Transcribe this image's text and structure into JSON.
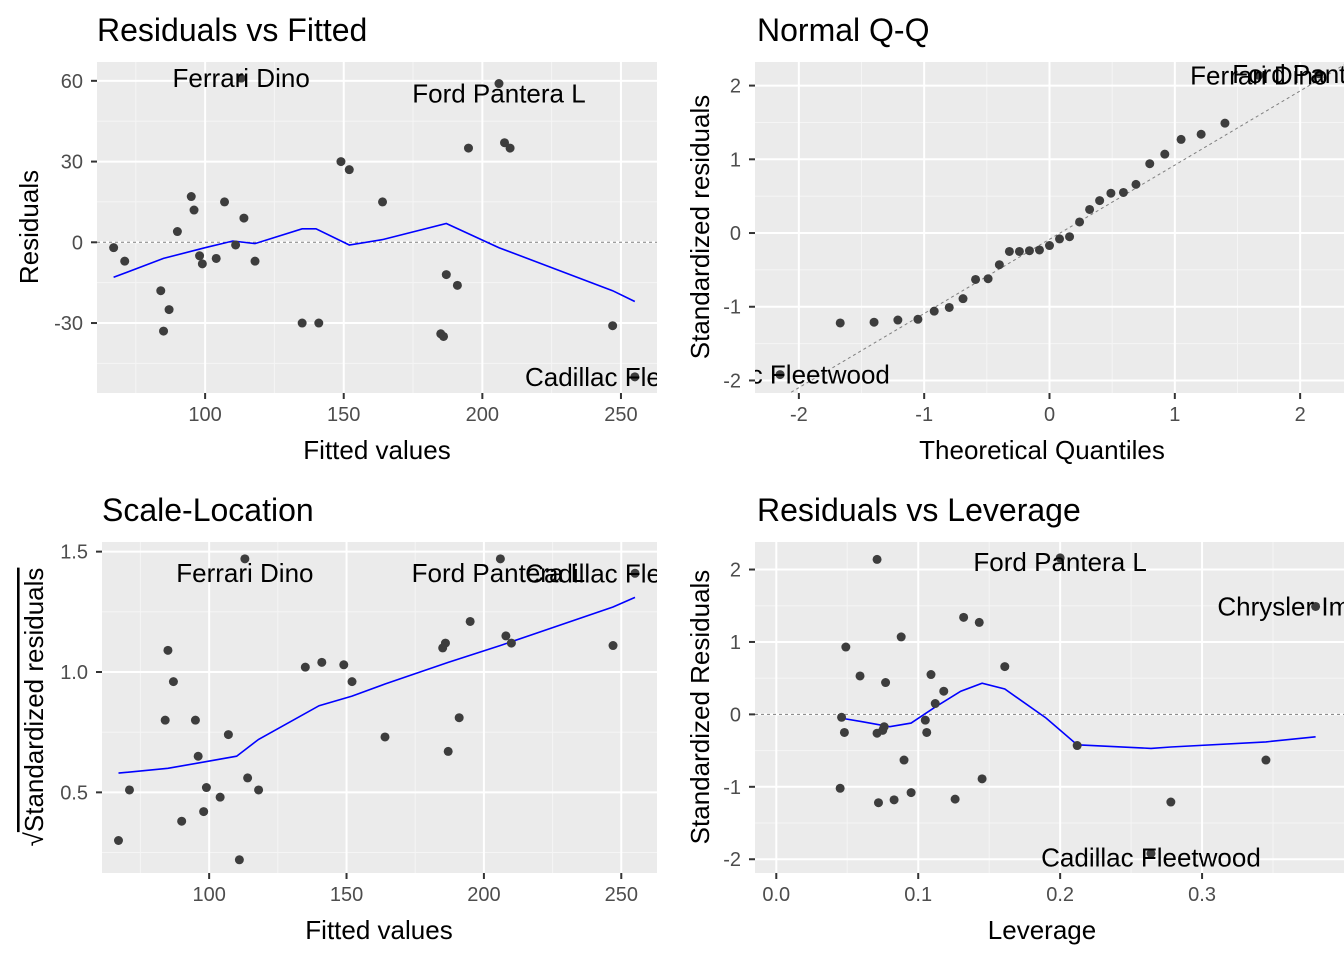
{
  "chart_data": [
    {
      "type": "scatter",
      "title": "Residuals vs Fitted",
      "xlabel": "Fitted values",
      "ylabel": "Residuals",
      "xlim": [
        61,
        263
      ],
      "ylim": [
        -56,
        67
      ],
      "xticks": [
        100,
        150,
        200,
        250
      ],
      "yticks": [
        -30,
        0,
        30,
        60
      ],
      "tick_labels_x": [
        "100",
        "150",
        "200",
        "250"
      ],
      "tick_labels_y": [
        "-30",
        "0",
        "30",
        "60"
      ],
      "hline": 0,
      "points": [
        {
          "x": 67,
          "y": -2
        },
        {
          "x": 71,
          "y": -7
        },
        {
          "x": 84,
          "y": -18
        },
        {
          "x": 85,
          "y": -33
        },
        {
          "x": 87,
          "y": -25
        },
        {
          "x": 90,
          "y": 4
        },
        {
          "x": 95,
          "y": 17
        },
        {
          "x": 96,
          "y": 12
        },
        {
          "x": 98,
          "y": -5
        },
        {
          "x": 99,
          "y": -8
        },
        {
          "x": 104,
          "y": -6
        },
        {
          "x": 107,
          "y": 15
        },
        {
          "x": 111,
          "y": -1
        },
        {
          "x": 113,
          "y": 61
        },
        {
          "x": 114,
          "y": 9
        },
        {
          "x": 118,
          "y": -7
        },
        {
          "x": 135,
          "y": -30
        },
        {
          "x": 141,
          "y": -30
        },
        {
          "x": 149,
          "y": 30
        },
        {
          "x": 152,
          "y": 27
        },
        {
          "x": 164,
          "y": 15
        },
        {
          "x": 185,
          "y": -34
        },
        {
          "x": 186,
          "y": -35
        },
        {
          "x": 187,
          "y": -12
        },
        {
          "x": 191,
          "y": -16
        },
        {
          "x": 195,
          "y": 35
        },
        {
          "x": 206,
          "y": 59
        },
        {
          "x": 208,
          "y": 37
        },
        {
          "x": 210,
          "y": 35
        },
        {
          "x": 247,
          "y": -31
        },
        {
          "x": 255,
          "y": -50
        }
      ],
      "smooth": [
        {
          "x": 67,
          "y": -13
        },
        {
          "x": 85,
          "y": -6
        },
        {
          "x": 100,
          "y": -2
        },
        {
          "x": 110,
          "y": 0.5
        },
        {
          "x": 118,
          "y": -0.5
        },
        {
          "x": 135,
          "y": 5
        },
        {
          "x": 140,
          "y": 5
        },
        {
          "x": 152,
          "y": -1
        },
        {
          "x": 164,
          "y": 1
        },
        {
          "x": 187,
          "y": 7
        },
        {
          "x": 206,
          "y": -2
        },
        {
          "x": 247,
          "y": -18
        },
        {
          "x": 255,
          "y": -22
        }
      ],
      "labels": [
        {
          "text": "Ferrari Dino",
          "x": 113,
          "y": 61
        },
        {
          "text": "Ford Pantera L",
          "x": 206,
          "y": 59
        },
        {
          "text": "Cadillac Fleetwood",
          "x": 255,
          "y": -50
        }
      ]
    },
    {
      "type": "scatter",
      "title": "Normal Q-Q",
      "xlabel": "Theoretical Quantiles",
      "ylabel": "Standardized residuals",
      "xlim": [
        -2.35,
        2.35
      ],
      "ylim": [
        -2.17,
        2.32
      ],
      "xticks": [
        -2,
        -1,
        0,
        1,
        2
      ],
      "yticks": [
        -2,
        -1,
        0,
        1,
        2
      ],
      "tick_labels_x": [
        "-2",
        "-1",
        "0",
        "1",
        "2"
      ],
      "tick_labels_y": [
        "-2",
        "-1",
        "0",
        "1",
        "2"
      ],
      "ref_line": {
        "from": [
          -2.35,
          -2.45
        ],
        "to": [
          2.35,
          2.28
        ]
      },
      "points": [
        {
          "x": -2.15,
          "y": -1.92
        },
        {
          "x": -1.67,
          "y": -1.22
        },
        {
          "x": -1.4,
          "y": -1.21
        },
        {
          "x": -1.21,
          "y": -1.18
        },
        {
          "x": -1.05,
          "y": -1.17
        },
        {
          "x": -0.92,
          "y": -1.06
        },
        {
          "x": -0.8,
          "y": -1.01
        },
        {
          "x": -0.69,
          "y": -0.89
        },
        {
          "x": -0.59,
          "y": -0.63
        },
        {
          "x": -0.49,
          "y": -0.62
        },
        {
          "x": -0.4,
          "y": -0.43
        },
        {
          "x": -0.32,
          "y": -0.25
        },
        {
          "x": -0.24,
          "y": -0.25
        },
        {
          "x": -0.16,
          "y": -0.24
        },
        {
          "x": -0.08,
          "y": -0.23
        },
        {
          "x": 0.0,
          "y": -0.17
        },
        {
          "x": 0.08,
          "y": -0.08
        },
        {
          "x": 0.16,
          "y": -0.05
        },
        {
          "x": 0.24,
          "y": 0.15
        },
        {
          "x": 0.32,
          "y": 0.32
        },
        {
          "x": 0.4,
          "y": 0.44
        },
        {
          "x": 0.49,
          "y": 0.54
        },
        {
          "x": 0.59,
          "y": 0.55
        },
        {
          "x": 0.69,
          "y": 0.66
        },
        {
          "x": 0.8,
          "y": 0.94
        },
        {
          "x": 0.92,
          "y": 1.07
        },
        {
          "x": 1.05,
          "y": 1.27
        },
        {
          "x": 1.21,
          "y": 1.34
        },
        {
          "x": 1.4,
          "y": 1.49
        },
        {
          "x": 1.67,
          "y": 2.14
        },
        {
          "x": 2.15,
          "y": 2.16
        }
      ],
      "labels": [
        {
          "text": "Ferrari Dino",
          "x": 1.67,
          "y": 2.14
        },
        {
          "text": "Ford Pantera L",
          "x": 2.15,
          "y": 2.16
        },
        {
          "text": "Cadillac Fleetwood",
          "x": -2.15,
          "y": -1.92
        }
      ]
    },
    {
      "type": "scatter",
      "title": "Scale-Location",
      "xlabel": "Fitted values",
      "ylabel": "Standardized residuals",
      "ylabel_prefix": "√",
      "xlim": [
        61,
        263
      ],
      "ylim": [
        0.165,
        1.54
      ],
      "xticks": [
        100,
        150,
        200,
        250
      ],
      "yticks": [
        0.5,
        1.0,
        1.5
      ],
      "tick_labels_x": [
        "100",
        "150",
        "200",
        "250"
      ],
      "tick_labels_y": [
        "0.5",
        "1.0",
        "1.5"
      ],
      "points": [
        {
          "x": 67,
          "y": 0.3
        },
        {
          "x": 71,
          "y": 0.51
        },
        {
          "x": 84,
          "y": 0.8
        },
        {
          "x": 85,
          "y": 1.09
        },
        {
          "x": 87,
          "y": 0.96
        },
        {
          "x": 90,
          "y": 0.38
        },
        {
          "x": 95,
          "y": 0.8
        },
        {
          "x": 96,
          "y": 0.65
        },
        {
          "x": 98,
          "y": 0.42
        },
        {
          "x": 99,
          "y": 0.52
        },
        {
          "x": 104,
          "y": 0.48
        },
        {
          "x": 107,
          "y": 0.74
        },
        {
          "x": 111,
          "y": 0.22
        },
        {
          "x": 113,
          "y": 1.47
        },
        {
          "x": 114,
          "y": 0.56
        },
        {
          "x": 118,
          "y": 0.51
        },
        {
          "x": 135,
          "y": 1.02
        },
        {
          "x": 141,
          "y": 1.04
        },
        {
          "x": 149,
          "y": 1.03
        },
        {
          "x": 152,
          "y": 0.96
        },
        {
          "x": 164,
          "y": 0.73
        },
        {
          "x": 185,
          "y": 1.1
        },
        {
          "x": 186,
          "y": 1.12
        },
        {
          "x": 187,
          "y": 0.67
        },
        {
          "x": 191,
          "y": 0.81
        },
        {
          "x": 195,
          "y": 1.21
        },
        {
          "x": 206,
          "y": 1.47
        },
        {
          "x": 208,
          "y": 1.15
        },
        {
          "x": 210,
          "y": 1.12
        },
        {
          "x": 247,
          "y": 1.11
        },
        {
          "x": 255,
          "y": 1.41
        }
      ],
      "smooth": [
        {
          "x": 67,
          "y": 0.58
        },
        {
          "x": 85,
          "y": 0.6
        },
        {
          "x": 100,
          "y": 0.63
        },
        {
          "x": 110,
          "y": 0.65
        },
        {
          "x": 118,
          "y": 0.72
        },
        {
          "x": 140,
          "y": 0.86
        },
        {
          "x": 152,
          "y": 0.9
        },
        {
          "x": 164,
          "y": 0.95
        },
        {
          "x": 187,
          "y": 1.04
        },
        {
          "x": 206,
          "y": 1.11
        },
        {
          "x": 247,
          "y": 1.27
        },
        {
          "x": 255,
          "y": 1.31
        }
      ],
      "labels": [
        {
          "text": "Ferrari Dino",
          "x": 113,
          "y": 1.47
        },
        {
          "text": "Ford Pantera L",
          "x": 206,
          "y": 1.47
        },
        {
          "text": "Cadillac Fleetwood",
          "x": 255,
          "y": 1.41
        }
      ]
    },
    {
      "type": "scatter",
      "title": "Residuals vs Leverage",
      "xlabel": "Leverage",
      "ylabel": "Standardized Residuals",
      "xlim": [
        -0.015,
        0.4
      ],
      "ylim": [
        -2.19,
        2.38
      ],
      "xticks": [
        0.0,
        0.1,
        0.2,
        0.3
      ],
      "yticks": [
        -2,
        -1,
        0,
        1,
        2
      ],
      "tick_labels_x": [
        "0.0",
        "0.1",
        "0.2",
        "0.3"
      ],
      "tick_labels_y": [
        "-2",
        "-1",
        "0",
        "1",
        "2"
      ],
      "hline": 0,
      "points": [
        {
          "x": 0.045,
          "y": -1.02
        },
        {
          "x": 0.046,
          "y": -0.04
        },
        {
          "x": 0.048,
          "y": -0.25
        },
        {
          "x": 0.049,
          "y": 0.93
        },
        {
          "x": 0.059,
          "y": 0.53
        },
        {
          "x": 0.071,
          "y": 2.14
        },
        {
          "x": 0.071,
          "y": -0.26
        },
        {
          "x": 0.072,
          "y": -1.22
        },
        {
          "x": 0.075,
          "y": -0.22
        },
        {
          "x": 0.076,
          "y": -0.17
        },
        {
          "x": 0.077,
          "y": 0.44
        },
        {
          "x": 0.083,
          "y": -1.18
        },
        {
          "x": 0.088,
          "y": 1.07
        },
        {
          "x": 0.09,
          "y": -0.63
        },
        {
          "x": 0.095,
          "y": -1.08
        },
        {
          "x": 0.105,
          "y": -0.08
        },
        {
          "x": 0.106,
          "y": -0.25
        },
        {
          "x": 0.109,
          "y": 0.55
        },
        {
          "x": 0.112,
          "y": 0.15
        },
        {
          "x": 0.118,
          "y": 0.32
        },
        {
          "x": 0.126,
          "y": -1.17
        },
        {
          "x": 0.132,
          "y": 1.34
        },
        {
          "x": 0.143,
          "y": 1.27
        },
        {
          "x": 0.145,
          "y": -0.89
        },
        {
          "x": 0.161,
          "y": 0.66
        },
        {
          "x": 0.2,
          "y": 2.16
        },
        {
          "x": 0.212,
          "y": -0.43
        },
        {
          "x": 0.264,
          "y": -1.92
        },
        {
          "x": 0.278,
          "y": -1.21
        },
        {
          "x": 0.345,
          "y": -0.63
        },
        {
          "x": 0.38,
          "y": 1.49
        }
      ],
      "smooth": [
        {
          "x": 0.045,
          "y": -0.05
        },
        {
          "x": 0.06,
          "y": -0.1
        },
        {
          "x": 0.08,
          "y": -0.17
        },
        {
          "x": 0.095,
          "y": -0.12
        },
        {
          "x": 0.112,
          "y": 0.1
        },
        {
          "x": 0.13,
          "y": 0.32
        },
        {
          "x": 0.145,
          "y": 0.43
        },
        {
          "x": 0.161,
          "y": 0.35
        },
        {
          "x": 0.19,
          "y": -0.05
        },
        {
          "x": 0.212,
          "y": -0.42
        },
        {
          "x": 0.264,
          "y": -0.47
        },
        {
          "x": 0.278,
          "y": -0.45
        },
        {
          "x": 0.345,
          "y": -0.38
        },
        {
          "x": 0.38,
          "y": -0.31
        }
      ],
      "labels": [
        {
          "text": "Ford Pantera L",
          "x": 0.2,
          "y": 2.16
        },
        {
          "text": "Chrysler Imperial",
          "x": 0.38,
          "y": 1.49
        },
        {
          "text": "Cadillac Fleetwood",
          "x": 0.264,
          "y": -1.92
        }
      ]
    }
  ]
}
